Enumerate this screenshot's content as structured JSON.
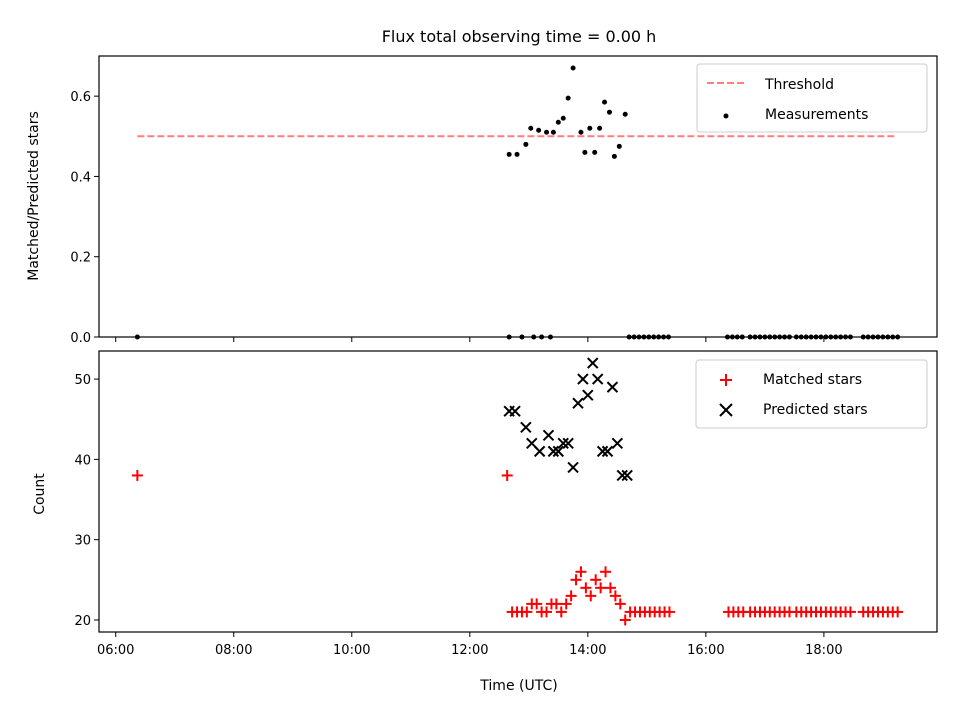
{
  "colors": {
    "threshold": "#ff7f7f",
    "measurement": "#000000",
    "matched": "#ff0000",
    "predicted": "#000000"
  },
  "chart_data": [
    {
      "type": "scatter",
      "title": "Flux total observing time = 0.00 h",
      "xlabel": "",
      "ylabel": "Matched/Predicted stars",
      "ylim": [
        0,
        0.7
      ],
      "xlim": [
        "05:43",
        "19:55"
      ],
      "yticks": [
        "0.0",
        "0.2",
        "0.4",
        "0.6"
      ],
      "grid": false,
      "legend": "top-right",
      "series": [
        {
          "name": "Threshold",
          "kind": "dashed-line",
          "x": [
            "06:22",
            "19:13"
          ],
          "y": [
            0.5,
            0.5
          ]
        },
        {
          "name": "Measurements",
          "kind": "dots",
          "x": [
            "06:22",
            "12:40",
            "12:48",
            "12:57",
            "13:02",
            "13:10",
            "13:18",
            "13:25",
            "13:30",
            "13:35",
            "13:40",
            "13:45",
            "13:53",
            "13:57",
            "14:02",
            "14:07",
            "14:12",
            "14:17",
            "14:22",
            "14:27",
            "14:32",
            "14:38",
            "12:40",
            "12:53",
            "13:05",
            "13:13",
            "13:22"
          ],
          "y": [
            0.0,
            0.455,
            0.455,
            0.48,
            0.52,
            0.515,
            0.51,
            0.51,
            0.535,
            0.545,
            0.595,
            0.67,
            0.51,
            0.46,
            0.52,
            0.46,
            0.52,
            0.585,
            0.56,
            0.45,
            0.475,
            0.555,
            0.0,
            0.0,
            0.0,
            0.0,
            0.0
          ]
        },
        {
          "name": "",
          "kind": "zero-dots",
          "x": [
            "14:42",
            "14:47",
            "14:52",
            "14:57",
            "15:02",
            "15:07",
            "15:12",
            "15:17",
            "15:22",
            "16:22",
            "16:27",
            "16:32",
            "16:37",
            "16:45",
            "16:50",
            "16:55",
            "17:00",
            "17:05",
            "17:10",
            "17:15",
            "17:20",
            "17:25",
            "17:32",
            "17:37",
            "17:42",
            "17:47",
            "17:52",
            "17:57",
            "18:02",
            "18:07",
            "18:12",
            "18:17",
            "18:22",
            "18:27",
            "18:40",
            "18:45",
            "18:50",
            "18:55",
            "19:00",
            "19:05",
            "19:10",
            "19:15"
          ],
          "y": [
            0,
            0,
            0,
            0,
            0,
            0,
            0,
            0,
            0,
            0,
            0,
            0,
            0,
            0,
            0,
            0,
            0,
            0,
            0,
            0,
            0,
            0,
            0,
            0,
            0,
            0,
            0,
            0,
            0,
            0,
            0,
            0,
            0,
            0,
            0,
            0,
            0,
            0,
            0,
            0,
            0,
            0
          ]
        }
      ]
    },
    {
      "type": "scatter",
      "title": "",
      "xlabel": "Time (UTC)",
      "ylabel": "Count",
      "ylim": [
        18.5,
        53.5
      ],
      "xlim": [
        "05:43",
        "19:55"
      ],
      "xticks": [
        "06:00",
        "08:00",
        "10:00",
        "12:00",
        "14:00",
        "16:00",
        "18:00"
      ],
      "yticks": [
        "20",
        "30",
        "40",
        "50"
      ],
      "grid": false,
      "legend": "top-right",
      "series": [
        {
          "name": "Matched stars",
          "kind": "plus",
          "x": [
            "06:22",
            "12:38",
            "12:43",
            "12:48",
            "12:53",
            "12:58",
            "13:03",
            "13:08",
            "13:13",
            "13:18",
            "13:23",
            "13:28",
            "13:33",
            "13:38",
            "13:43",
            "13:48",
            "13:53",
            "13:58",
            "14:03",
            "14:08",
            "14:13",
            "14:18",
            "14:23",
            "14:28",
            "14:33",
            "14:38",
            "14:43",
            "14:48",
            "14:53",
            "14:58",
            "15:03",
            "15:08",
            "15:13",
            "15:18",
            "15:23",
            "16:23",
            "16:28",
            "16:33",
            "16:38",
            "16:45",
            "16:50",
            "16:55",
            "17:00",
            "17:05",
            "17:10",
            "17:15",
            "17:20",
            "17:25",
            "17:32",
            "17:37",
            "17:42",
            "17:47",
            "17:52",
            "17:57",
            "18:02",
            "18:07",
            "18:12",
            "18:17",
            "18:22",
            "18:27",
            "18:40",
            "18:45",
            "18:50",
            "18:55",
            "19:00",
            "19:05",
            "19:10",
            "19:15"
          ],
          "y": [
            38,
            38,
            21,
            21,
            21,
            21,
            22,
            22,
            21,
            21,
            22,
            22,
            21,
            22,
            23,
            25,
            26,
            24,
            23,
            25,
            24,
            26,
            24,
            23,
            22,
            20,
            21,
            21,
            21,
            21,
            21,
            21,
            21,
            21,
            21,
            21,
            21,
            21,
            21,
            21,
            21,
            21,
            21,
            21,
            21,
            21,
            21,
            21,
            21,
            21,
            21,
            21,
            21,
            21,
            21,
            21,
            21,
            21,
            21,
            21,
            21,
            21,
            21,
            21,
            21,
            21,
            21,
            21
          ]
        },
        {
          "name": "Predicted stars",
          "kind": "x",
          "x": [
            "12:40",
            "12:46",
            "12:57",
            "13:03",
            "13:11",
            "13:20",
            "13:25",
            "13:30",
            "13:35",
            "13:40",
            "13:45",
            "13:50",
            "13:55",
            "14:00",
            "14:05",
            "14:10",
            "14:15",
            "14:20",
            "14:25",
            "14:30",
            "14:35",
            "14:40"
          ],
          "y": [
            46,
            46,
            44,
            42,
            41,
            43,
            41,
            41,
            42,
            42,
            39,
            47,
            50,
            48,
            52,
            50,
            41,
            41,
            49,
            42,
            38,
            38
          ]
        }
      ]
    }
  ]
}
